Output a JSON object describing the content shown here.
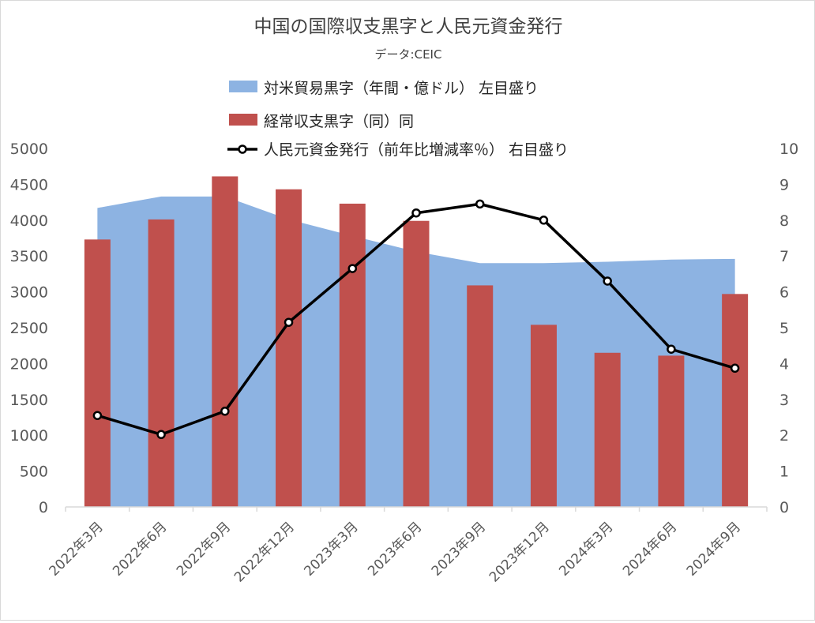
{
  "chart_data": {
    "type": "bar",
    "title": "中国の国際収支黒字と人民元資金発行",
    "subtitle": "データ:CEIC",
    "categories": [
      "2022年3月",
      "2022年6月",
      "2022年9月",
      "2022年12月",
      "2023年3月",
      "2023年6月",
      "2023年9月",
      "2023年12月",
      "2024年3月",
      "2024年6月",
      "2024年9月"
    ],
    "series": [
      {
        "name": "対米貿易黒字（年間・億ドル） 左目盛り",
        "kind": "area",
        "axis": "left",
        "color": "#8db3e2",
        "values": [
          4170,
          4330,
          4330,
          4010,
          3780,
          3560,
          3400,
          3400,
          3420,
          3450,
          3460
        ]
      },
      {
        "name": "経常収支黒字（同）同",
        "kind": "bar",
        "axis": "left",
        "color": "#c0504d",
        "values": [
          3730,
          4010,
          4610,
          4430,
          4230,
          3990,
          3090,
          2540,
          2150,
          2110,
          2970
        ]
      },
      {
        "name": "人民元資金発行（前年比増減率％） 右目盛り",
        "kind": "line",
        "axis": "right",
        "color": "#000000",
        "values": [
          2.55,
          2.02,
          2.67,
          5.15,
          6.65,
          8.2,
          8.45,
          8.0,
          6.3,
          4.4,
          3.87
        ]
      }
    ],
    "ylim_left": [
      0,
      5000
    ],
    "ylim_right": [
      0,
      10
    ],
    "yticks_left": [
      "0",
      "500",
      "1000",
      "1500",
      "2000",
      "2500",
      "3000",
      "3500",
      "4000",
      "4500",
      "5000"
    ],
    "yticks_right": [
      "0",
      "1",
      "2",
      "3",
      "4",
      "5",
      "6",
      "7",
      "8",
      "9",
      "10"
    ],
    "grid": false,
    "legend_position": "top"
  }
}
